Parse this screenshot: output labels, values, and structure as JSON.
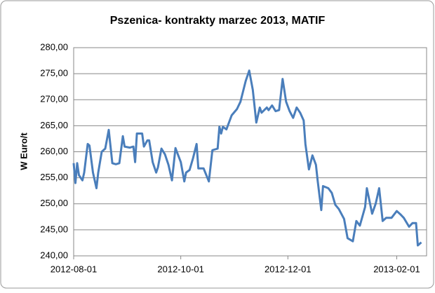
{
  "chart_data": {
    "type": "line",
    "title": "Pszenica- kontrakty marzec 2013, MATIF",
    "y_label": "W Euro/t",
    "x": [
      "2012-08-01",
      "2012-08-02",
      "2012-08-03",
      "2012-08-04",
      "2012-08-06",
      "2012-08-07",
      "2012-08-09",
      "2012-08-10",
      "2012-08-12",
      "2012-08-14",
      "2012-08-15",
      "2012-08-17",
      "2012-08-19",
      "2012-08-21",
      "2012-08-23",
      "2012-08-25",
      "2012-08-27",
      "2012-08-29",
      "2012-08-30",
      "2012-09-02",
      "2012-09-04",
      "2012-09-05",
      "2012-09-06",
      "2012-09-09",
      "2012-09-10",
      "2012-09-12",
      "2012-09-13",
      "2012-09-15",
      "2012-09-17",
      "2012-09-18",
      "2012-09-20",
      "2012-09-22",
      "2012-09-24",
      "2012-09-26",
      "2012-09-28",
      "2012-10-01",
      "2012-10-03",
      "2012-10-04",
      "2012-10-06",
      "2012-10-08",
      "2012-10-10",
      "2012-10-11",
      "2012-10-14",
      "2012-10-17",
      "2012-10-19",
      "2012-10-22",
      "2012-10-23",
      "2012-10-24",
      "2012-10-25",
      "2012-10-27",
      "2012-10-30",
      "2012-11-02",
      "2012-11-04",
      "2012-11-07",
      "2012-11-09",
      "2012-11-11",
      "2012-11-13",
      "2012-11-15",
      "2012-11-16",
      "2012-11-19",
      "2012-11-20",
      "2012-11-22",
      "2012-11-24",
      "2012-11-26",
      "2012-11-28",
      "2012-11-30",
      "2012-12-02",
      "2012-12-04",
      "2012-12-06",
      "2012-12-08",
      "2012-12-10",
      "2012-12-11",
      "2012-12-13",
      "2012-12-15",
      "2012-12-17",
      "2012-12-18",
      "2012-12-20",
      "2012-12-21",
      "2012-12-24",
      "2012-12-26",
      "2012-12-28",
      "2012-12-30",
      "2013-01-02",
      "2013-01-04",
      "2013-01-07",
      "2013-01-09",
      "2013-01-11",
      "2013-01-14",
      "2013-01-15",
      "2013-01-18",
      "2013-01-20",
      "2013-01-22",
      "2013-01-24",
      "2013-01-26",
      "2013-01-29",
      "2013-02-01",
      "2013-02-03",
      "2013-02-05",
      "2013-02-08",
      "2013-02-10",
      "2013-02-12",
      "2013-02-13",
      "2013-02-15"
    ],
    "series": [
      {
        "name": "MATIF",
        "color": "#4a7ebb",
        "values": [
          257.8,
          254,
          257.8,
          255.5,
          254.5,
          256,
          261.5,
          261.2,
          256,
          253,
          256,
          260,
          260.6,
          264.2,
          257.8,
          257.6,
          257.8,
          263,
          261,
          260.8,
          261,
          258,
          263.5,
          263.5,
          261,
          262.2,
          262.2,
          258,
          256,
          257,
          260.6,
          259.5,
          257.5,
          254.5,
          260.7,
          258,
          254.3,
          256,
          256.5,
          258.8,
          261.5,
          256.8,
          256.8,
          254.3,
          260.3,
          260.6,
          264.8,
          263.5,
          264.8,
          264.3,
          267,
          268.2,
          269.6,
          273.6,
          275.6,
          271.9,
          265.6,
          268.5,
          267.5,
          268.5,
          268,
          268.9,
          267.8,
          268,
          274,
          269.6,
          267.8,
          266.5,
          268.5,
          267.5,
          266,
          261.5,
          256.6,
          259.3,
          257.5,
          254.4,
          248.8,
          253.4,
          253,
          252.1,
          249.8,
          249,
          247.1,
          243.4,
          242.8,
          246.7,
          245.8,
          249.4,
          253,
          248.1,
          250,
          253,
          246.7,
          247.3,
          247.3,
          248.6,
          248,
          247.3,
          245.6,
          246.3,
          246.3,
          242,
          242.6
        ]
      }
    ],
    "xlim": [
      "2012-08-01",
      "2013-02-18"
    ],
    "xticks": [
      "2012-08-01",
      "2012-10-01",
      "2012-12-01",
      "2013-02-01"
    ],
    "ylim": [
      240,
      280
    ],
    "yticks": [
      {
        "value": 240,
        "label": "240,00"
      },
      {
        "value": 245,
        "label": "245,00"
      },
      {
        "value": 250,
        "label": "250,00"
      },
      {
        "value": 255,
        "label": "255,00"
      },
      {
        "value": 260,
        "label": "260,00"
      },
      {
        "value": 265,
        "label": "265,00"
      },
      {
        "value": 270,
        "label": "270,00"
      },
      {
        "value": 275,
        "label": "275,00"
      },
      {
        "value": 280,
        "label": "280,00"
      }
    ],
    "grid": true
  }
}
